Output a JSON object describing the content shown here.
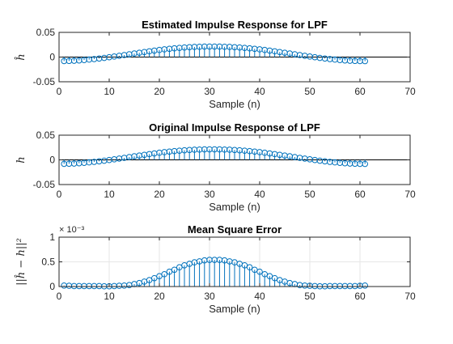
{
  "colors": {
    "stem": "#0072BD",
    "axis": "#262626",
    "zero_line": "#000000",
    "grid": "#e6e6e6"
  },
  "chart_data": [
    {
      "type": "stem",
      "title": "Estimated Impulse Response for LPF",
      "xlabel": "Sample (n)",
      "ylabel": "ĥ",
      "xlim": [
        0,
        70
      ],
      "ylim": [
        -0.05,
        0.05
      ],
      "xticks": [
        "0",
        "10",
        "20",
        "30",
        "40",
        "50",
        "60",
        "70"
      ],
      "yticks": [
        "-0.05",
        "0",
        "0.05"
      ],
      "grid": false,
      "baseline": true,
      "exponent_label": "",
      "x": [
        1,
        2,
        3,
        4,
        5,
        6,
        7,
        8,
        9,
        10,
        11,
        12,
        13,
        14,
        15,
        16,
        17,
        18,
        19,
        20,
        21,
        22,
        23,
        24,
        25,
        26,
        27,
        28,
        29,
        30,
        31,
        32,
        33,
        34,
        35,
        36,
        37,
        38,
        39,
        40,
        41,
        42,
        43,
        44,
        45,
        46,
        47,
        48,
        49,
        50,
        51,
        52,
        53,
        54,
        55,
        56,
        57,
        58,
        59,
        60,
        61
      ],
      "values": [
        -0.0081,
        -0.0078,
        -0.0074,
        -0.0068,
        -0.006,
        -0.0051,
        -0.0041,
        -0.0029,
        -0.0017,
        -0.0003,
        0.0011,
        0.0026,
        0.0041,
        0.0057,
        0.0072,
        0.0087,
        0.0102,
        0.0117,
        0.013,
        0.0144,
        0.0156,
        0.0167,
        0.0177,
        0.0186,
        0.0194,
        0.02,
        0.0206,
        0.0209,
        0.0212,
        0.0213,
        0.0213,
        0.0212,
        0.0209,
        0.0206,
        0.02,
        0.0194,
        0.0186,
        0.0177,
        0.0167,
        0.0156,
        0.0144,
        0.013,
        0.0117,
        0.0102,
        0.0087,
        0.0072,
        0.0057,
        0.0041,
        0.0026,
        0.0011,
        -0.0003,
        -0.0017,
        -0.0029,
        -0.0041,
        -0.0051,
        -0.006,
        -0.0068,
        -0.0074,
        -0.0078,
        -0.0081,
        -0.0082
      ]
    },
    {
      "type": "stem",
      "title": "Original Impulse Response of LPF",
      "xlabel": "Sample (n)",
      "ylabel": "h",
      "xlim": [
        0,
        70
      ],
      "ylim": [
        -0.05,
        0.05
      ],
      "xticks": [
        "0",
        "10",
        "20",
        "30",
        "40",
        "50",
        "60",
        "70"
      ],
      "yticks": [
        "-0.05",
        "0",
        "0.05"
      ],
      "grid": false,
      "baseline": true,
      "exponent_label": "",
      "x": [
        1,
        2,
        3,
        4,
        5,
        6,
        7,
        8,
        9,
        10,
        11,
        12,
        13,
        14,
        15,
        16,
        17,
        18,
        19,
        20,
        21,
        22,
        23,
        24,
        25,
        26,
        27,
        28,
        29,
        30,
        31,
        32,
        33,
        34,
        35,
        36,
        37,
        38,
        39,
        40,
        41,
        42,
        43,
        44,
        45,
        46,
        47,
        48,
        49,
        50,
        51,
        52,
        53,
        54,
        55,
        56,
        57,
        58,
        59,
        60,
        61
      ],
      "values": [
        -0.0081,
        -0.0078,
        -0.0074,
        -0.0068,
        -0.006,
        -0.0051,
        -0.0041,
        -0.0029,
        -0.0017,
        -0.0003,
        0.0011,
        0.0026,
        0.0041,
        0.0057,
        0.0072,
        0.0087,
        0.0102,
        0.0117,
        0.013,
        0.0144,
        0.0156,
        0.0167,
        0.0177,
        0.0186,
        0.0194,
        0.02,
        0.0206,
        0.0209,
        0.0212,
        0.0213,
        0.0213,
        0.0212,
        0.0209,
        0.0206,
        0.02,
        0.0194,
        0.0186,
        0.0177,
        0.0167,
        0.0156,
        0.0144,
        0.013,
        0.0117,
        0.0102,
        0.0087,
        0.0072,
        0.0057,
        0.0041,
        0.0026,
        0.0011,
        -0.0003,
        -0.0017,
        -0.0029,
        -0.0041,
        -0.0051,
        -0.006,
        -0.0068,
        -0.0074,
        -0.0078,
        -0.0081,
        -0.0082
      ]
    },
    {
      "type": "stem",
      "title": "Mean Square Error",
      "xlabel": "Sample (n)",
      "ylabel": "||ĥ − h||²",
      "xlim": [
        0,
        70
      ],
      "ylim": [
        0,
        0.001
      ],
      "xticks": [
        "0",
        "10",
        "20",
        "30",
        "40",
        "50",
        "60",
        "70"
      ],
      "yticks": [
        "0",
        "0.5",
        "1"
      ],
      "grid": true,
      "baseline": false,
      "exponent_label": "× 10⁻³",
      "x": [
        1,
        2,
        3,
        4,
        5,
        6,
        7,
        8,
        9,
        10,
        11,
        12,
        13,
        14,
        15,
        16,
        17,
        18,
        19,
        20,
        21,
        22,
        23,
        24,
        25,
        26,
        27,
        28,
        29,
        30,
        31,
        32,
        33,
        34,
        35,
        36,
        37,
        38,
        39,
        40,
        41,
        42,
        43,
        44,
        45,
        46,
        47,
        48,
        49,
        50,
        51,
        52,
        53,
        54,
        55,
        56,
        57,
        58,
        59,
        60,
        61
      ],
      "values": [
        2e-05,
        1.5e-05,
        1e-05,
        1e-05,
        1e-05,
        1e-05,
        1e-05,
        1e-05,
        5e-06,
        5e-06,
        1e-05,
        1.5e-05,
        2e-05,
        3e-05,
        5e-05,
        7e-05,
        0.0001,
        0.00013,
        0.00017,
        0.00021,
        0.00025,
        0.0003,
        0.00034,
        0.00039,
        0.00043,
        0.00046,
        0.00049,
        0.00051,
        0.00053,
        0.00054,
        0.00054,
        0.00054,
        0.00053,
        0.00051,
        0.00049,
        0.00046,
        0.00043,
        0.00039,
        0.00034,
        0.0003,
        0.00025,
        0.00021,
        0.00017,
        0.00013,
        0.0001,
        7e-05,
        5e-05,
        3e-05,
        2e-05,
        1.5e-05,
        1e-05,
        5e-06,
        5e-06,
        1e-05,
        1e-05,
        1e-05,
        1e-05,
        1e-05,
        1e-05,
        1.5e-05,
        2e-05
      ]
    }
  ]
}
